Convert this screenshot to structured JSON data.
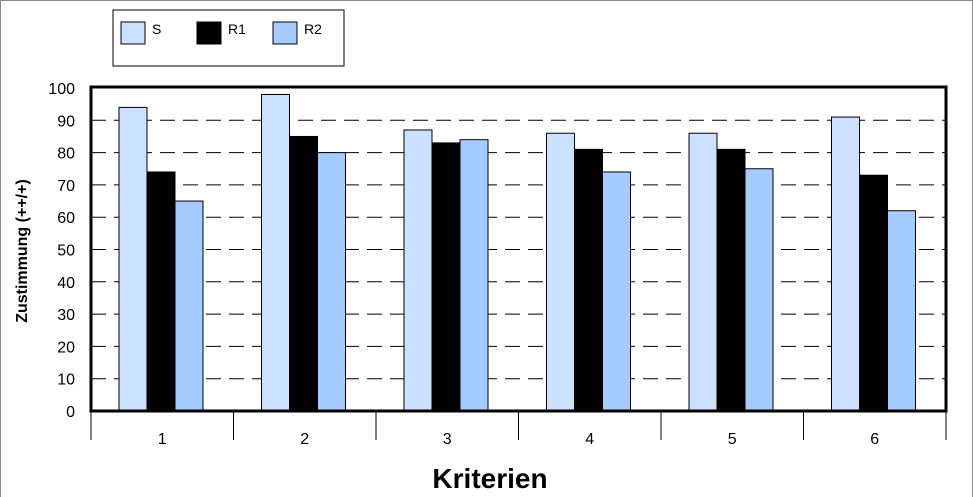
{
  "chart_data": {
    "type": "bar",
    "title": "",
    "xlabel": "Kriterien",
    "ylabel": "Zustimmung (++/+)",
    "categories": [
      "1",
      "2",
      "3",
      "4",
      "5",
      "6"
    ],
    "ylim": [
      0,
      100
    ],
    "yticks": [
      0,
      10,
      20,
      30,
      40,
      50,
      60,
      70,
      80,
      90,
      100
    ],
    "grid": "dashed horizontal",
    "legend": "top-left",
    "series": [
      {
        "name": "S",
        "color": "#cce0ff",
        "values": [
          94,
          98,
          87,
          86,
          86,
          91
        ]
      },
      {
        "name": "R1",
        "color": "#000000",
        "values": [
          74,
          85,
          83,
          81,
          81,
          73
        ]
      },
      {
        "name": "R2",
        "color": "#a6cbff",
        "values": [
          65,
          80,
          84,
          74,
          75,
          62
        ]
      }
    ]
  }
}
